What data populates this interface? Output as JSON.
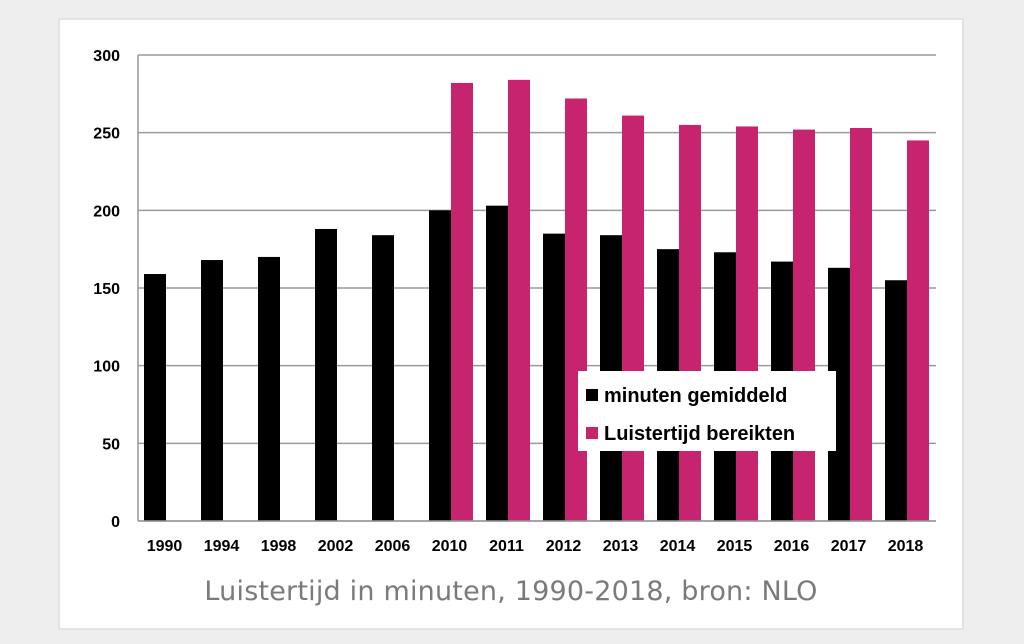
{
  "caption": "Luistertijd in minuten, 1990-2018, bron: NLO",
  "colors": {
    "series1": "#000000",
    "series2": "#c72470",
    "grid": "#9a9a9a",
    "background": "#ffffff"
  },
  "chart_data": {
    "type": "bar",
    "title": "",
    "xlabel": "",
    "ylabel": "",
    "ylim": [
      0,
      300
    ],
    "yticks": [
      0,
      50,
      100,
      150,
      200,
      250,
      300
    ],
    "grid": true,
    "legend_position": "bottom-right",
    "categories": [
      "1990",
      "1994",
      "1998",
      "2002",
      "2006",
      "2010",
      "2011",
      "2012",
      "2013",
      "2014",
      "2015",
      "2016",
      "2017",
      "2018"
    ],
    "series": [
      {
        "name": "minuten gemiddeld",
        "values": [
          159,
          168,
          170,
          188,
          184,
          200,
          203,
          185,
          184,
          175,
          173,
          167,
          163,
          155
        ]
      },
      {
        "name": "Luistertijd bereikten",
        "values": [
          null,
          null,
          null,
          null,
          null,
          282,
          284,
          272,
          261,
          255,
          254,
          252,
          253,
          245
        ]
      }
    ]
  }
}
